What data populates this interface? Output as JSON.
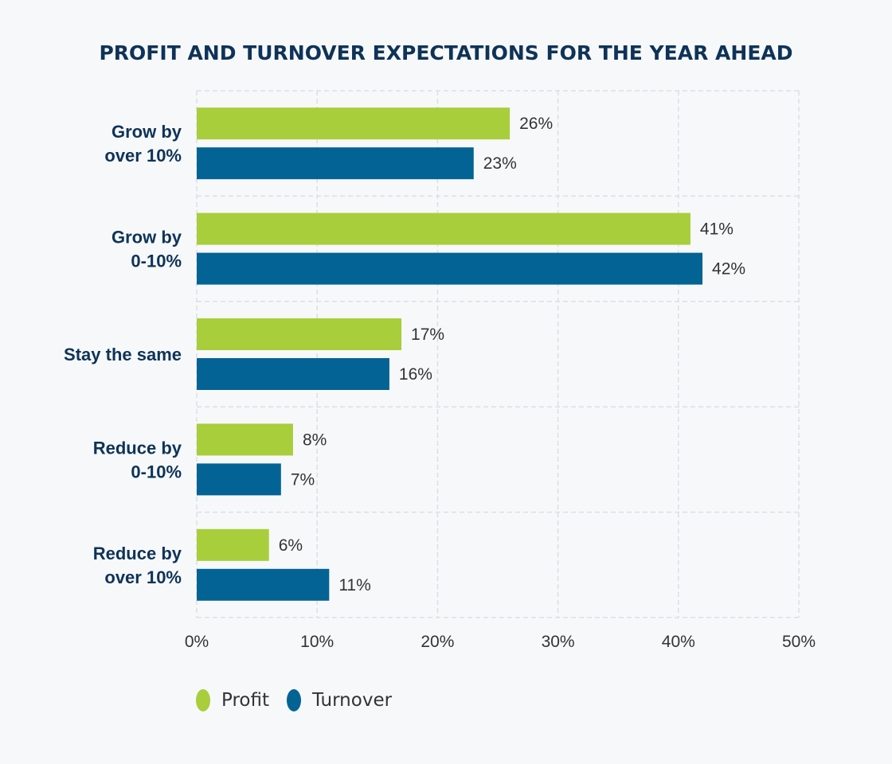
{
  "chart_data": {
    "type": "bar",
    "orientation": "horizontal",
    "title": "PROFIT AND TURNOVER EXPECTATIONS FOR THE YEAR AHEAD",
    "categories": [
      [
        "Grow by",
        "over 10%"
      ],
      [
        "Grow by",
        "0-10%"
      ],
      [
        "Stay the same"
      ],
      [
        "Reduce by",
        "0-10%"
      ],
      [
        "Reduce by",
        "over 10%"
      ]
    ],
    "series": [
      {
        "name": "Profit",
        "color": "#a8ce3b",
        "values": [
          26,
          41,
          17,
          8,
          6
        ]
      },
      {
        "name": "Turnover",
        "color": "#036394",
        "values": [
          23,
          42,
          16,
          7,
          11
        ]
      }
    ],
    "value_suffix": "%",
    "xlim": [
      0,
      50
    ],
    "xticks": [
      0,
      10,
      20,
      30,
      40,
      50
    ],
    "xtick_labels": [
      "0%",
      "10%",
      "20%",
      "30%",
      "40%",
      "50%"
    ],
    "xlabel": "",
    "ylabel": "",
    "grid": true,
    "legend_position": "bottom-left"
  }
}
